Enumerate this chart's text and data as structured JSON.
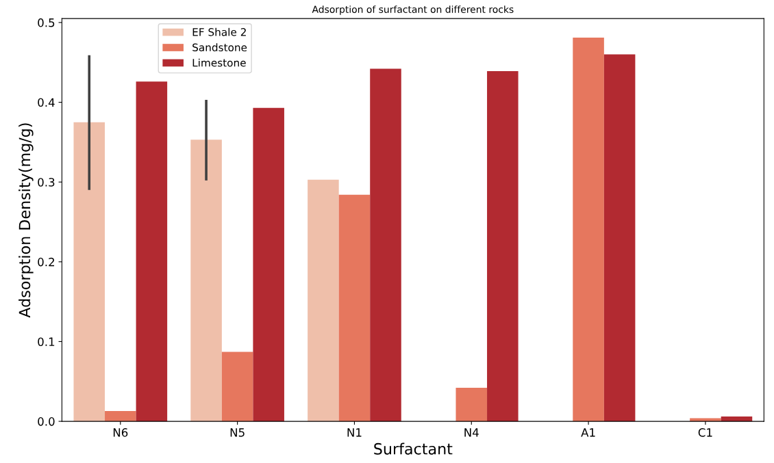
{
  "chart_data": {
    "type": "bar",
    "title": "Adsorption of surfactant on different rocks",
    "xlabel": "Surfactant",
    "ylabel": "Adsorption Density(mg/g)",
    "categories": [
      "N6",
      "N5",
      "N1",
      "N4",
      "A1",
      "C1"
    ],
    "series": [
      {
        "name": "EF Shale 2",
        "color": "#efbfaa",
        "values": [
          0.375,
          0.353,
          0.303,
          null,
          null,
          null
        ],
        "errors": [
          [
            0.29,
            0.459
          ],
          [
            0.302,
            0.403
          ],
          null,
          null,
          null,
          null
        ]
      },
      {
        "name": "Sandstone",
        "color": "#e6775e",
        "values": [
          0.013,
          0.087,
          0.284,
          0.042,
          0.481,
          0.004
        ]
      },
      {
        "name": "Limestone",
        "color": "#b22a31",
        "values": [
          0.426,
          0.393,
          0.442,
          0.439,
          0.46,
          0.006
        ]
      }
    ],
    "ylim": [
      0,
      0.505
    ],
    "yticks": [
      {
        "value": 0,
        "label": "0.0"
      },
      0.1,
      0.2,
      0.3,
      0.4,
      0.5
    ],
    "grid": false,
    "legend": "top left"
  }
}
